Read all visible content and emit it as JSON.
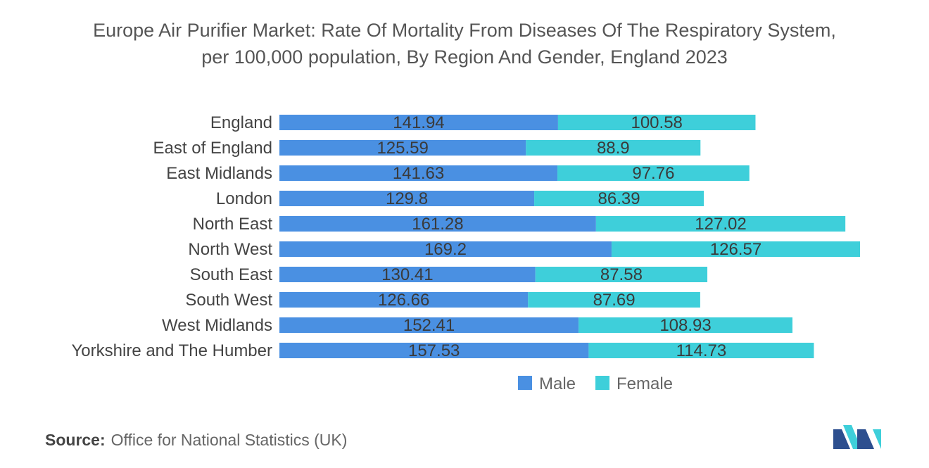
{
  "title": {
    "line1": "Europe Air Purifier Market: Rate Of Mortality From Diseases Of The Respiratory System,",
    "line2": "per 100,000 population, By Region And Gender, England 2023"
  },
  "chart_data": {
    "type": "bar",
    "orientation": "horizontal",
    "stacked": true,
    "categories": [
      "England",
      "East of England",
      "East Midlands",
      "London",
      "North East",
      "North West",
      "South East",
      "South West",
      "West Midlands",
      "Yorkshire and The Humber"
    ],
    "series": [
      {
        "name": "Male",
        "color": "#4a90e2",
        "values": [
          141.94,
          125.59,
          141.63,
          129.8,
          161.28,
          169.2,
          130.41,
          126.66,
          152.41,
          157.53
        ]
      },
      {
        "name": "Female",
        "color": "#3ecfda",
        "values": [
          100.58,
          88.9,
          97.76,
          86.39,
          127.02,
          126.57,
          87.58,
          87.69,
          108.93,
          114.73
        ]
      }
    ],
    "xlim": [
      0,
      295.77
    ],
    "grid": false,
    "legend": "bottom-center",
    "xlabel": "",
    "ylabel": ""
  },
  "source": {
    "label": "Source:",
    "text": "Office for National Statistics (UK)"
  },
  "logo": {
    "icon": "mordor-intelligence-logo",
    "colors": [
      "#2d4f8f",
      "#3ecfda"
    ]
  }
}
